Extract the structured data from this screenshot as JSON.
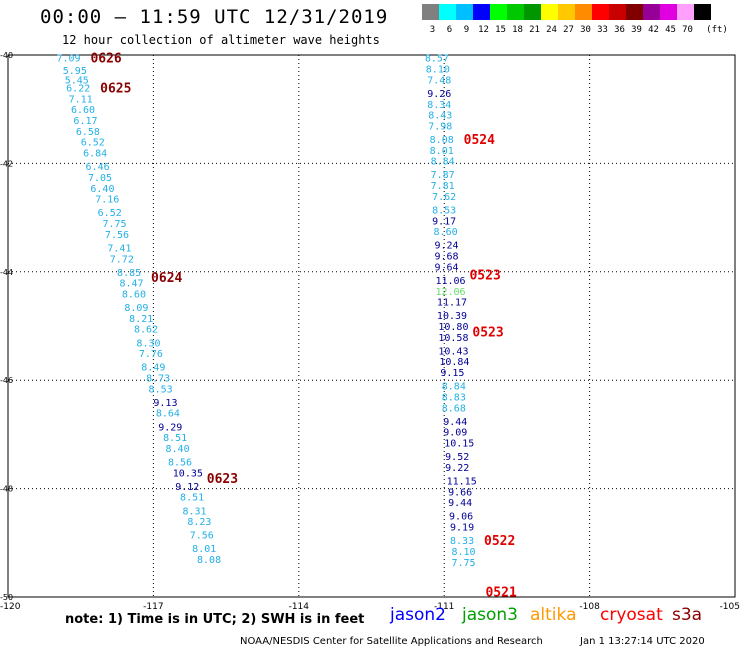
{
  "title": "00:00 – 11:59 UTC 12/31/2019",
  "subtitle": "12 hour collection of altimeter wave heights",
  "legend": {
    "unit": "(ft)",
    "bins": [
      {
        "color": "#808080",
        "label": "3"
      },
      {
        "color": "#00ffff",
        "label": "6"
      },
      {
        "color": "#00bfff",
        "label": "9"
      },
      {
        "color": "#0000ff",
        "label": "12"
      },
      {
        "color": "#00ff00",
        "label": "15"
      },
      {
        "color": "#00c800",
        "label": "18"
      },
      {
        "color": "#009600",
        "label": "21"
      },
      {
        "color": "#ffff00",
        "label": "24"
      },
      {
        "color": "#ffc800",
        "label": "27"
      },
      {
        "color": "#ff8c00",
        "label": "30"
      },
      {
        "color": "#ff0000",
        "label": "33"
      },
      {
        "color": "#c80000",
        "label": "36"
      },
      {
        "color": "#800000",
        "label": "39"
      },
      {
        "color": "#960096",
        "label": "42"
      },
      {
        "color": "#e000e0",
        "label": "45"
      },
      {
        "color": "#ffa0ff",
        "label": "70"
      },
      {
        "color": "#000000",
        "label": ""
      }
    ]
  },
  "map": {
    "lon_range": [
      -120,
      -105
    ],
    "lat_range": [
      -50,
      -40
    ],
    "lon_ticks": [
      "-120",
      "-117",
      "-114",
      "-111",
      "-108",
      "-105"
    ],
    "lat_ticks": [
      "-40",
      "-42",
      "-44",
      "-46",
      "-48",
      "-50"
    ],
    "grid_lons": [
      -117,
      -114,
      -111,
      -108
    ],
    "grid_lats": [
      -42,
      -44,
      -46,
      -48
    ]
  },
  "tracks": [
    {
      "id": "west",
      "times": [
        {
          "label": "0626",
          "lat": -40.05,
          "color": "#8b0000"
        },
        {
          "label": "0625",
          "lat": -40.6,
          "color": "#8b0000"
        },
        {
          "label": "0624",
          "lat": -44.1,
          "color": "#8b0000"
        },
        {
          "label": "0623",
          "lat": -47.8,
          "color": "#8b0000"
        }
      ],
      "points": [
        {
          "lon": -119.0,
          "lat": -40.05,
          "v": "7.09",
          "c": "#23b0e6"
        },
        {
          "lon": -118.87,
          "lat": -40.28,
          "v": "5.95",
          "c": "#23b0e6"
        },
        {
          "lon": -118.83,
          "lat": -40.45,
          "v": "5.45",
          "c": "#23b0e6"
        },
        {
          "lon": -118.8,
          "lat": -40.6,
          "v": "6.22",
          "c": "#23b0e6"
        },
        {
          "lon": -118.75,
          "lat": -40.8,
          "v": "7.11",
          "c": "#23b0e6"
        },
        {
          "lon": -118.7,
          "lat": -41.0,
          "v": "6.60",
          "c": "#23b0e6"
        },
        {
          "lon": -118.65,
          "lat": -41.2,
          "v": "6.17",
          "c": "#23b0e6"
        },
        {
          "lon": -118.6,
          "lat": -41.4,
          "v": "6.58",
          "c": "#23b0e6"
        },
        {
          "lon": -118.5,
          "lat": -41.6,
          "v": "6.52",
          "c": "#23b0e6"
        },
        {
          "lon": -118.45,
          "lat": -41.8,
          "v": "6.84",
          "c": "#23b0e6"
        },
        {
          "lon": -118.4,
          "lat": -42.05,
          "v": "6.46",
          "c": "#23b0e6"
        },
        {
          "lon": -118.35,
          "lat": -42.25,
          "v": "7.05",
          "c": "#23b0e6"
        },
        {
          "lon": -118.3,
          "lat": -42.45,
          "v": "6.40",
          "c": "#23b0e6"
        },
        {
          "lon": -118.2,
          "lat": -42.65,
          "v": "7.16",
          "c": "#23b0e6"
        },
        {
          "lon": -118.15,
          "lat": -42.9,
          "v": "6.52",
          "c": "#23b0e6"
        },
        {
          "lon": -118.05,
          "lat": -43.1,
          "v": "7.75",
          "c": "#23b0e6"
        },
        {
          "lon": -118.0,
          "lat": -43.3,
          "v": "7.56",
          "c": "#23b0e6"
        },
        {
          "lon": -117.95,
          "lat": -43.55,
          "v": "7.41",
          "c": "#23b0e6"
        },
        {
          "lon": -117.9,
          "lat": -43.75,
          "v": "7.72",
          "c": "#23b0e6"
        },
        {
          "lon": -117.75,
          "lat": -44.0,
          "v": "8.85",
          "c": "#23b0e6"
        },
        {
          "lon": -117.7,
          "lat": -44.2,
          "v": "8.47",
          "c": "#23b0e6"
        },
        {
          "lon": -117.65,
          "lat": -44.4,
          "v": "8.60",
          "c": "#23b0e6"
        },
        {
          "lon": -117.6,
          "lat": -44.65,
          "v": "8.09",
          "c": "#23b0e6"
        },
        {
          "lon": -117.5,
          "lat": -44.85,
          "v": "8.21",
          "c": "#23b0e6"
        },
        {
          "lon": -117.4,
          "lat": -45.05,
          "v": "8.62",
          "c": "#23b0e6"
        },
        {
          "lon": -117.35,
          "lat": -45.3,
          "v": "8.30",
          "c": "#23b0e6"
        },
        {
          "lon": -117.3,
          "lat": -45.5,
          "v": "7.76",
          "c": "#23b0e6"
        },
        {
          "lon": -117.25,
          "lat": -45.75,
          "v": "8.49",
          "c": "#23b0e6"
        },
        {
          "lon": -117.15,
          "lat": -45.95,
          "v": "8.73",
          "c": "#23b0e6"
        },
        {
          "lon": -117.1,
          "lat": -46.15,
          "v": "8.53",
          "c": "#23b0e6"
        },
        {
          "lon": -117.0,
          "lat": -46.4,
          "v": "9.13",
          "c": "#000096"
        },
        {
          "lon": -116.95,
          "lat": -46.6,
          "v": "8.64",
          "c": "#23b0e6"
        },
        {
          "lon": -116.9,
          "lat": -46.85,
          "v": "9.29",
          "c": "#000096"
        },
        {
          "lon": -116.8,
          "lat": -47.05,
          "v": "8.51",
          "c": "#23b0e6"
        },
        {
          "lon": -116.75,
          "lat": -47.25,
          "v": "8.40",
          "c": "#23b0e6"
        },
        {
          "lon": -116.7,
          "lat": -47.5,
          "v": "8.56",
          "c": "#23b0e6"
        },
        {
          "lon": -116.6,
          "lat": -47.7,
          "v": "10.35",
          "c": "#000096"
        },
        {
          "lon": -116.55,
          "lat": -47.95,
          "v": "9.12",
          "c": "#000096"
        },
        {
          "lon": -116.45,
          "lat": -48.15,
          "v": "8.51",
          "c": "#23b0e6"
        },
        {
          "lon": -116.4,
          "lat": -48.4,
          "v": "8.31",
          "c": "#23b0e6"
        },
        {
          "lon": -116.3,
          "lat": -48.6,
          "v": "8.23",
          "c": "#23b0e6"
        },
        {
          "lon": -116.25,
          "lat": -48.85,
          "v": "7.56",
          "c": "#23b0e6"
        },
        {
          "lon": -116.2,
          "lat": -49.1,
          "v": "8.01",
          "c": "#23b0e6"
        },
        {
          "lon": -116.1,
          "lat": -49.3,
          "v": "8.08",
          "c": "#23b0e6"
        }
      ]
    },
    {
      "id": "east",
      "times": [
        {
          "label": "0524",
          "lat": -41.55,
          "color": "#e00000"
        },
        {
          "lon_hint": "",
          "label": "0523",
          "lat": -44.05,
          "color": "#e00000"
        },
        {
          "label": "0523",
          "lat": -45.1,
          "color": "#e00000"
        },
        {
          "label": "0522",
          "lat": -48.95,
          "color": "#e00000"
        },
        {
          "label": "0521",
          "lat": -49.9,
          "color": "#e00000"
        }
      ],
      "points": [
        {
          "lon": -111.4,
          "lat": -40.05,
          "v": "8.57",
          "c": "#23b0e6"
        },
        {
          "lon": -111.38,
          "lat": -40.25,
          "v": "8.10",
          "c": "#23b0e6"
        },
        {
          "lon": -111.35,
          "lat": -40.45,
          "v": "7.48",
          "c": "#23b0e6"
        },
        {
          "lon": -111.35,
          "lat": -40.7,
          "v": "9.26",
          "c": "#000096"
        },
        {
          "lon": -111.35,
          "lat": -40.9,
          "v": "8.34",
          "c": "#23b0e6"
        },
        {
          "lon": -111.33,
          "lat": -41.1,
          "v": "8.43",
          "c": "#23b0e6"
        },
        {
          "lon": -111.33,
          "lat": -41.3,
          "v": "7.98",
          "c": "#23b0e6"
        },
        {
          "lon": -111.3,
          "lat": -41.55,
          "v": "8.08",
          "c": "#23b0e6"
        },
        {
          "lon": -111.3,
          "lat": -41.75,
          "v": "8.01",
          "c": "#23b0e6"
        },
        {
          "lon": -111.28,
          "lat": -41.95,
          "v": "8.84",
          "c": "#23b0e6"
        },
        {
          "lon": -111.28,
          "lat": -42.2,
          "v": "7.87",
          "c": "#23b0e6"
        },
        {
          "lon": -111.28,
          "lat": -42.4,
          "v": "7.81",
          "c": "#23b0e6"
        },
        {
          "lon": -111.25,
          "lat": -42.6,
          "v": "7.62",
          "c": "#23b0e6"
        },
        {
          "lon": -111.25,
          "lat": -42.85,
          "v": "8.53",
          "c": "#23b0e6"
        },
        {
          "lon": -111.25,
          "lat": -43.05,
          "v": "9.17",
          "c": "#000096"
        },
        {
          "lon": -111.22,
          "lat": -43.25,
          "v": "8.60",
          "c": "#23b0e6"
        },
        {
          "lon": -111.2,
          "lat": -43.5,
          "v": "9.24",
          "c": "#000096"
        },
        {
          "lon": -111.2,
          "lat": -43.7,
          "v": "9.68",
          "c": "#000096"
        },
        {
          "lon": -111.2,
          "lat": -43.9,
          "v": "9.64",
          "c": "#000096"
        },
        {
          "lon": -111.18,
          "lat": -44.15,
          "v": "11.06",
          "c": "#000096"
        },
        {
          "lon": -111.18,
          "lat": -44.35,
          "v": "12.06",
          "c": "#66dd66"
        },
        {
          "lon": -111.15,
          "lat": -44.55,
          "v": "11.17",
          "c": "#000096"
        },
        {
          "lon": -111.15,
          "lat": -44.8,
          "v": "10.39",
          "c": "#000096"
        },
        {
          "lon": -111.12,
          "lat": -45.0,
          "v": "10.80",
          "c": "#000096"
        },
        {
          "lon": -111.12,
          "lat": -45.2,
          "v": "10.58",
          "c": "#000096"
        },
        {
          "lon": -111.12,
          "lat": -45.45,
          "v": "10.43",
          "c": "#000096"
        },
        {
          "lon": -111.1,
          "lat": -45.65,
          "v": "10.84",
          "c": "#000096"
        },
        {
          "lon": -111.08,
          "lat": -45.85,
          "v": "9.15",
          "c": "#000096"
        },
        {
          "lon": -111.05,
          "lat": -46.1,
          "v": "8.84",
          "c": "#23b0e6"
        },
        {
          "lon": -111.05,
          "lat": -46.3,
          "v": "8.83",
          "c": "#23b0e6"
        },
        {
          "lon": -111.05,
          "lat": -46.5,
          "v": "8.68",
          "c": "#23b0e6"
        },
        {
          "lon": -111.02,
          "lat": -46.75,
          "v": "9.44",
          "c": "#000096"
        },
        {
          "lon": -111.02,
          "lat": -46.95,
          "v": "9.09",
          "c": "#000096"
        },
        {
          "lon": -111.0,
          "lat": -47.15,
          "v": "10.15",
          "c": "#000096"
        },
        {
          "lon": -110.98,
          "lat": -47.4,
          "v": "9.52",
          "c": "#000096"
        },
        {
          "lon": -110.98,
          "lat": -47.6,
          "v": "9.22",
          "c": "#000096"
        },
        {
          "lon": -110.95,
          "lat": -47.85,
          "v": "11.15",
          "c": "#000096"
        },
        {
          "lon": -110.92,
          "lat": -48.05,
          "v": "9.66",
          "c": "#000096"
        },
        {
          "lon": -110.92,
          "lat": -48.25,
          "v": "9.44",
          "c": "#000096"
        },
        {
          "lon": -110.9,
          "lat": -48.5,
          "v": "9.06",
          "c": "#000096"
        },
        {
          "lon": -110.88,
          "lat": -48.7,
          "v": "9.19",
          "c": "#000096"
        },
        {
          "lon": -110.88,
          "lat": -48.95,
          "v": "8.33",
          "c": "#23b0e6"
        },
        {
          "lon": -110.85,
          "lat": -49.15,
          "v": "8.10",
          "c": "#23b0e6"
        },
        {
          "lon": -110.85,
          "lat": -49.35,
          "v": "7.75",
          "c": "#23b0e6"
        }
      ]
    }
  ],
  "note": "note:  1) Time is in UTC; 2) SWH is in feet",
  "satellites": [
    {
      "name": "jason2",
      "color": "#0000ff"
    },
    {
      "name": "jason3",
      "color": "#00a000"
    },
    {
      "name": "altika",
      "color": "#ff9900"
    },
    {
      "name": "cryosat",
      "color": "#ff0000"
    },
    {
      "name": "s3a",
      "color": "#8b0000"
    }
  ],
  "credit": "NOAA/NESDIS Center for Satellite Applications and Research",
  "stamp": "Jan  1 13:27:14 UTC 2020"
}
